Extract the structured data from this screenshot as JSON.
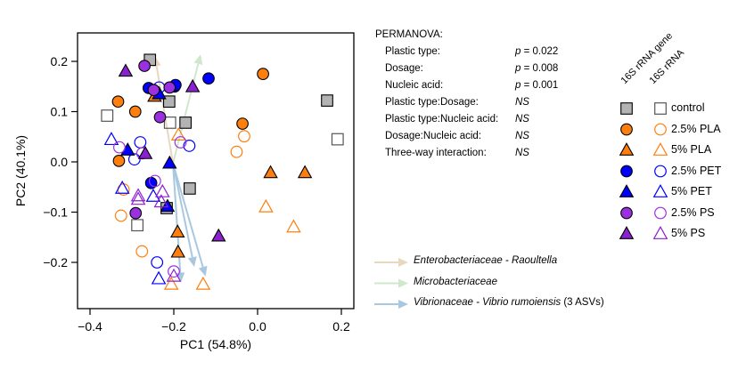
{
  "chart_data": {
    "type": "scatter",
    "title": "",
    "xlabel": "PC1 (54.8%)",
    "ylabel": "PC2 (40.1%)",
    "xlim": [
      -0.43,
      0.23
    ],
    "ylim": [
      -0.265,
      0.258
    ],
    "xticks": [
      -0.4,
      -0.2,
      0.0,
      0.2
    ],
    "xtick_labels": [
      "−0.4",
      "−0.2",
      "0.0",
      "0.2"
    ],
    "yticks": [
      -0.2,
      -0.1,
      0.0,
      0.1,
      0.2
    ],
    "ytick_labels": [
      "−0.2",
      "−0.1",
      "0.0",
      "0.1",
      "0.2"
    ],
    "grid": false,
    "groups": {
      "control": {
        "color": "#b3b3b3",
        "open_color": "#555555",
        "shape": "square"
      },
      "2.5% PLA": {
        "color": "#ff7f0e",
        "shape": "circle"
      },
      "5% PLA": {
        "color": "#ff7f0e",
        "shape": "triangle"
      },
      "2.5% PET": {
        "color": "#0000ff",
        "shape": "circle"
      },
      "5% PET": {
        "color": "#0000ff",
        "shape": "triangle"
      },
      "2.5% PS": {
        "color": "#9b30e0",
        "shape": "circle"
      },
      "5% PS": {
        "color": "#8b20d0",
        "shape": "triangle"
      }
    },
    "points": [
      {
        "group": "control",
        "filled": true,
        "x": -0.257,
        "y": 0.203
      },
      {
        "group": "control",
        "filled": true,
        "x": -0.211,
        "y": 0.12
      },
      {
        "group": "control",
        "filled": true,
        "x": -0.172,
        "y": 0.078
      },
      {
        "group": "control",
        "filled": true,
        "x": 0.166,
        "y": 0.122
      },
      {
        "group": "control",
        "filled": true,
        "x": -0.162,
        "y": -0.053
      },
      {
        "group": "control",
        "filled": true,
        "x": -0.217,
        "y": -0.092
      },
      {
        "group": "control",
        "filled": false,
        "x": -0.359,
        "y": 0.092
      },
      {
        "group": "control",
        "filled": false,
        "x": -0.209,
        "y": 0.078
      },
      {
        "group": "control",
        "filled": false,
        "x": 0.191,
        "y": 0.045
      },
      {
        "group": "control",
        "filled": false,
        "x": -0.287,
        "y": -0.126
      },
      {
        "group": "2.5% PLA",
        "filled": true,
        "x": -0.333,
        "y": 0.12
      },
      {
        "group": "2.5% PLA",
        "filled": true,
        "x": -0.292,
        "y": 0.1
      },
      {
        "group": "2.5% PLA",
        "filled": true,
        "x": 0.013,
        "y": 0.175
      },
      {
        "group": "2.5% PLA",
        "filled": true,
        "x": -0.036,
        "y": 0.076
      },
      {
        "group": "2.5% PLA",
        "filled": true,
        "x": -0.331,
        "y": 0.002
      },
      {
        "group": "2.5% PLA",
        "filled": false,
        "x": -0.032,
        "y": 0.051
      },
      {
        "group": "2.5% PLA",
        "filled": false,
        "x": -0.05,
        "y": 0.02
      },
      {
        "group": "2.5% PLA",
        "filled": false,
        "x": -0.32,
        "y": -0.055
      },
      {
        "group": "2.5% PLA",
        "filled": false,
        "x": -0.326,
        "y": -0.107
      },
      {
        "group": "2.5% PLA",
        "filled": false,
        "x": -0.276,
        "y": -0.178
      },
      {
        "group": "5% PLA",
        "filled": true,
        "x": -0.246,
        "y": 0.13
      },
      {
        "group": "5% PLA",
        "filled": true,
        "x": 0.031,
        "y": -0.022
      },
      {
        "group": "5% PLA",
        "filled": true,
        "x": 0.113,
        "y": -0.022
      },
      {
        "group": "5% PLA",
        "filled": true,
        "x": -0.191,
        "y": -0.14
      },
      {
        "group": "5% PLA",
        "filled": true,
        "x": -0.19,
        "y": -0.18
      },
      {
        "group": "5% PLA",
        "filled": false,
        "x": -0.189,
        "y": 0.053
      },
      {
        "group": "5% PLA",
        "filled": false,
        "x": 0.02,
        "y": -0.09
      },
      {
        "group": "5% PLA",
        "filled": false,
        "x": 0.086,
        "y": -0.13
      },
      {
        "group": "5% PLA",
        "filled": false,
        "x": -0.206,
        "y": -0.244
      },
      {
        "group": "5% PLA",
        "filled": false,
        "x": -0.13,
        "y": -0.244
      },
      {
        "group": "2.5% PET",
        "filled": true,
        "x": -0.26,
        "y": 0.147
      },
      {
        "group": "2.5% PET",
        "filled": true,
        "x": -0.198,
        "y": 0.15
      },
      {
        "group": "2.5% PET",
        "filled": true,
        "x": -0.196,
        "y": 0.153
      },
      {
        "group": "2.5% PET",
        "filled": true,
        "x": -0.117,
        "y": 0.166
      },
      {
        "group": "2.5% PET",
        "filled": true,
        "x": -0.254,
        "y": -0.042
      },
      {
        "group": "2.5% PET",
        "filled": false,
        "x": -0.235,
        "y": 0.148
      },
      {
        "group": "2.5% PET",
        "filled": false,
        "x": -0.28,
        "y": 0.039
      },
      {
        "group": "2.5% PET",
        "filled": false,
        "x": -0.163,
        "y": 0.032
      },
      {
        "group": "2.5% PET",
        "filled": false,
        "x": -0.294,
        "y": 0.005
      },
      {
        "group": "2.5% PET",
        "filled": false,
        "x": -0.24,
        "y": -0.2
      },
      {
        "group": "5% PET",
        "filled": true,
        "x": -0.235,
        "y": 0.135
      },
      {
        "group": "5% PET",
        "filled": true,
        "x": -0.31,
        "y": 0.023
      },
      {
        "group": "5% PET",
        "filled": true,
        "x": -0.21,
        "y": -0.003
      },
      {
        "group": "5% PET",
        "filled": true,
        "x": -0.215,
        "y": -0.089
      },
      {
        "group": "5% PET",
        "filled": false,
        "x": -0.349,
        "y": 0.044
      },
      {
        "group": "5% PET",
        "filled": false,
        "x": -0.323,
        "y": -0.053
      },
      {
        "group": "5% PET",
        "filled": false,
        "x": -0.249,
        "y": -0.069
      },
      {
        "group": "5% PET",
        "filled": false,
        "x": -0.236,
        "y": -0.233
      },
      {
        "group": "2.5% PS",
        "filled": true,
        "x": -0.27,
        "y": 0.191
      },
      {
        "group": "2.5% PS",
        "filled": true,
        "x": -0.248,
        "y": 0.143
      },
      {
        "group": "2.5% PS",
        "filled": true,
        "x": -0.21,
        "y": 0.148
      },
      {
        "group": "2.5% PS",
        "filled": true,
        "x": -0.233,
        "y": 0.089
      },
      {
        "group": "2.5% PS",
        "filled": true,
        "x": -0.291,
        "y": -0.102
      },
      {
        "group": "2.5% PS",
        "filled": false,
        "x": -0.33,
        "y": 0.029
      },
      {
        "group": "2.5% PS",
        "filled": false,
        "x": -0.184,
        "y": 0.039
      },
      {
        "group": "2.5% PS",
        "filled": false,
        "x": -0.275,
        "y": 0.017
      },
      {
        "group": "2.5% PS",
        "filled": false,
        "x": -0.245,
        "y": -0.038
      },
      {
        "group": "2.5% PS",
        "filled": false,
        "x": -0.2,
        "y": -0.218
      },
      {
        "group": "5% PS",
        "filled": true,
        "x": -0.315,
        "y": 0.18
      },
      {
        "group": "5% PS",
        "filled": true,
        "x": -0.155,
        "y": 0.149
      },
      {
        "group": "5% PS",
        "filled": true,
        "x": -0.268,
        "y": 0.016
      },
      {
        "group": "5% PS",
        "filled": true,
        "x": -0.093,
        "y": -0.148
      },
      {
        "group": "5% PS",
        "filled": false,
        "x": -0.285,
        "y": -0.068
      },
      {
        "group": "5% PS",
        "filled": false,
        "x": -0.285,
        "y": -0.075
      },
      {
        "group": "5% PS",
        "filled": false,
        "x": -0.227,
        "y": -0.06
      },
      {
        "group": "5% PS",
        "filled": false,
        "x": -0.23,
        "y": -0.08
      },
      {
        "group": "5% PS",
        "filled": false,
        "x": -0.2,
        "y": -0.228
      }
    ],
    "arrows": [
      {
        "taxon": "Enterobacteriaceae - Raoultella",
        "color": "#e8d8c0",
        "from": [
          -0.202,
          -0.003
        ],
        "to": [
          -0.245,
          0.21
        ]
      },
      {
        "taxon": "Microbacteriaceae",
        "color": "#cfe8cc",
        "from": [
          -0.202,
          -0.003
        ],
        "to": [
          -0.136,
          0.214
        ]
      },
      {
        "taxon": "Vibrionaceae - Vibrio rumoiensis",
        "color": "#a9c8e0",
        "from": [
          -0.202,
          -0.003
        ],
        "to": [
          -0.183,
          -0.24
        ]
      },
      {
        "taxon": "Vibrionaceae - Vibrio rumoiensis",
        "color": "#a9c8e0",
        "from": [
          -0.202,
          -0.003
        ],
        "to": [
          -0.151,
          -0.209
        ]
      },
      {
        "taxon": "Vibrionaceae - Vibrio rumoiensis",
        "color": "#a9c8e0",
        "from": [
          -0.202,
          -0.003
        ],
        "to": [
          -0.124,
          -0.228
        ]
      }
    ]
  },
  "permanova": {
    "title": "PERMANOVA:",
    "rows": [
      {
        "label": "Plastic type:",
        "p_prefix": "p",
        "value": " = 0.022"
      },
      {
        "label": "Dosage:",
        "p_prefix": "p",
        "value": " = 0.008"
      },
      {
        "label": "Nucleic acid:",
        "p_prefix": "p",
        "value": " = 0.001"
      },
      {
        "label": "Plastic type:Dosage:",
        "p_prefix": "",
        "value": "NS"
      },
      {
        "label": "Plastic type:Nucleic acid:",
        "p_prefix": "",
        "value": "NS"
      },
      {
        "label": "Dosage:Nucleic acid:",
        "p_prefix": "",
        "value": "NS"
      },
      {
        "label": "Three-way interaction:",
        "p_prefix": "",
        "value": "NS"
      }
    ]
  },
  "legend": {
    "header_filled": "16S rRNA gene",
    "header_open": "16S rRNA",
    "entries": [
      {
        "label": "control",
        "group": "control",
        "shape": "square"
      },
      {
        "label": "2.5% PLA",
        "group": "2.5% PLA",
        "shape": "circle"
      },
      {
        "label": "5% PLA",
        "group": "5% PLA",
        "shape": "triangle"
      },
      {
        "label": "2.5% PET",
        "group": "2.5% PET",
        "shape": "circle"
      },
      {
        "label": "5% PET",
        "group": "5% PET",
        "shape": "triangle"
      },
      {
        "label": "2.5% PS",
        "group": "2.5% PS",
        "shape": "circle"
      },
      {
        "label": "5% PS",
        "group": "5% PS",
        "shape": "triangle"
      }
    ]
  },
  "arrow_legend": [
    {
      "label": "Enterobacteriaceae - Raoultella",
      "suffix": "",
      "color": "#e8d8c0"
    },
    {
      "label": "Microbacteriaceae",
      "suffix": "",
      "color": "#cfe8cc"
    },
    {
      "label": "Vibrionaceae - Vibrio rumoiensis",
      "suffix": " (3 ASVs)",
      "color": "#a9c8e0"
    }
  ]
}
